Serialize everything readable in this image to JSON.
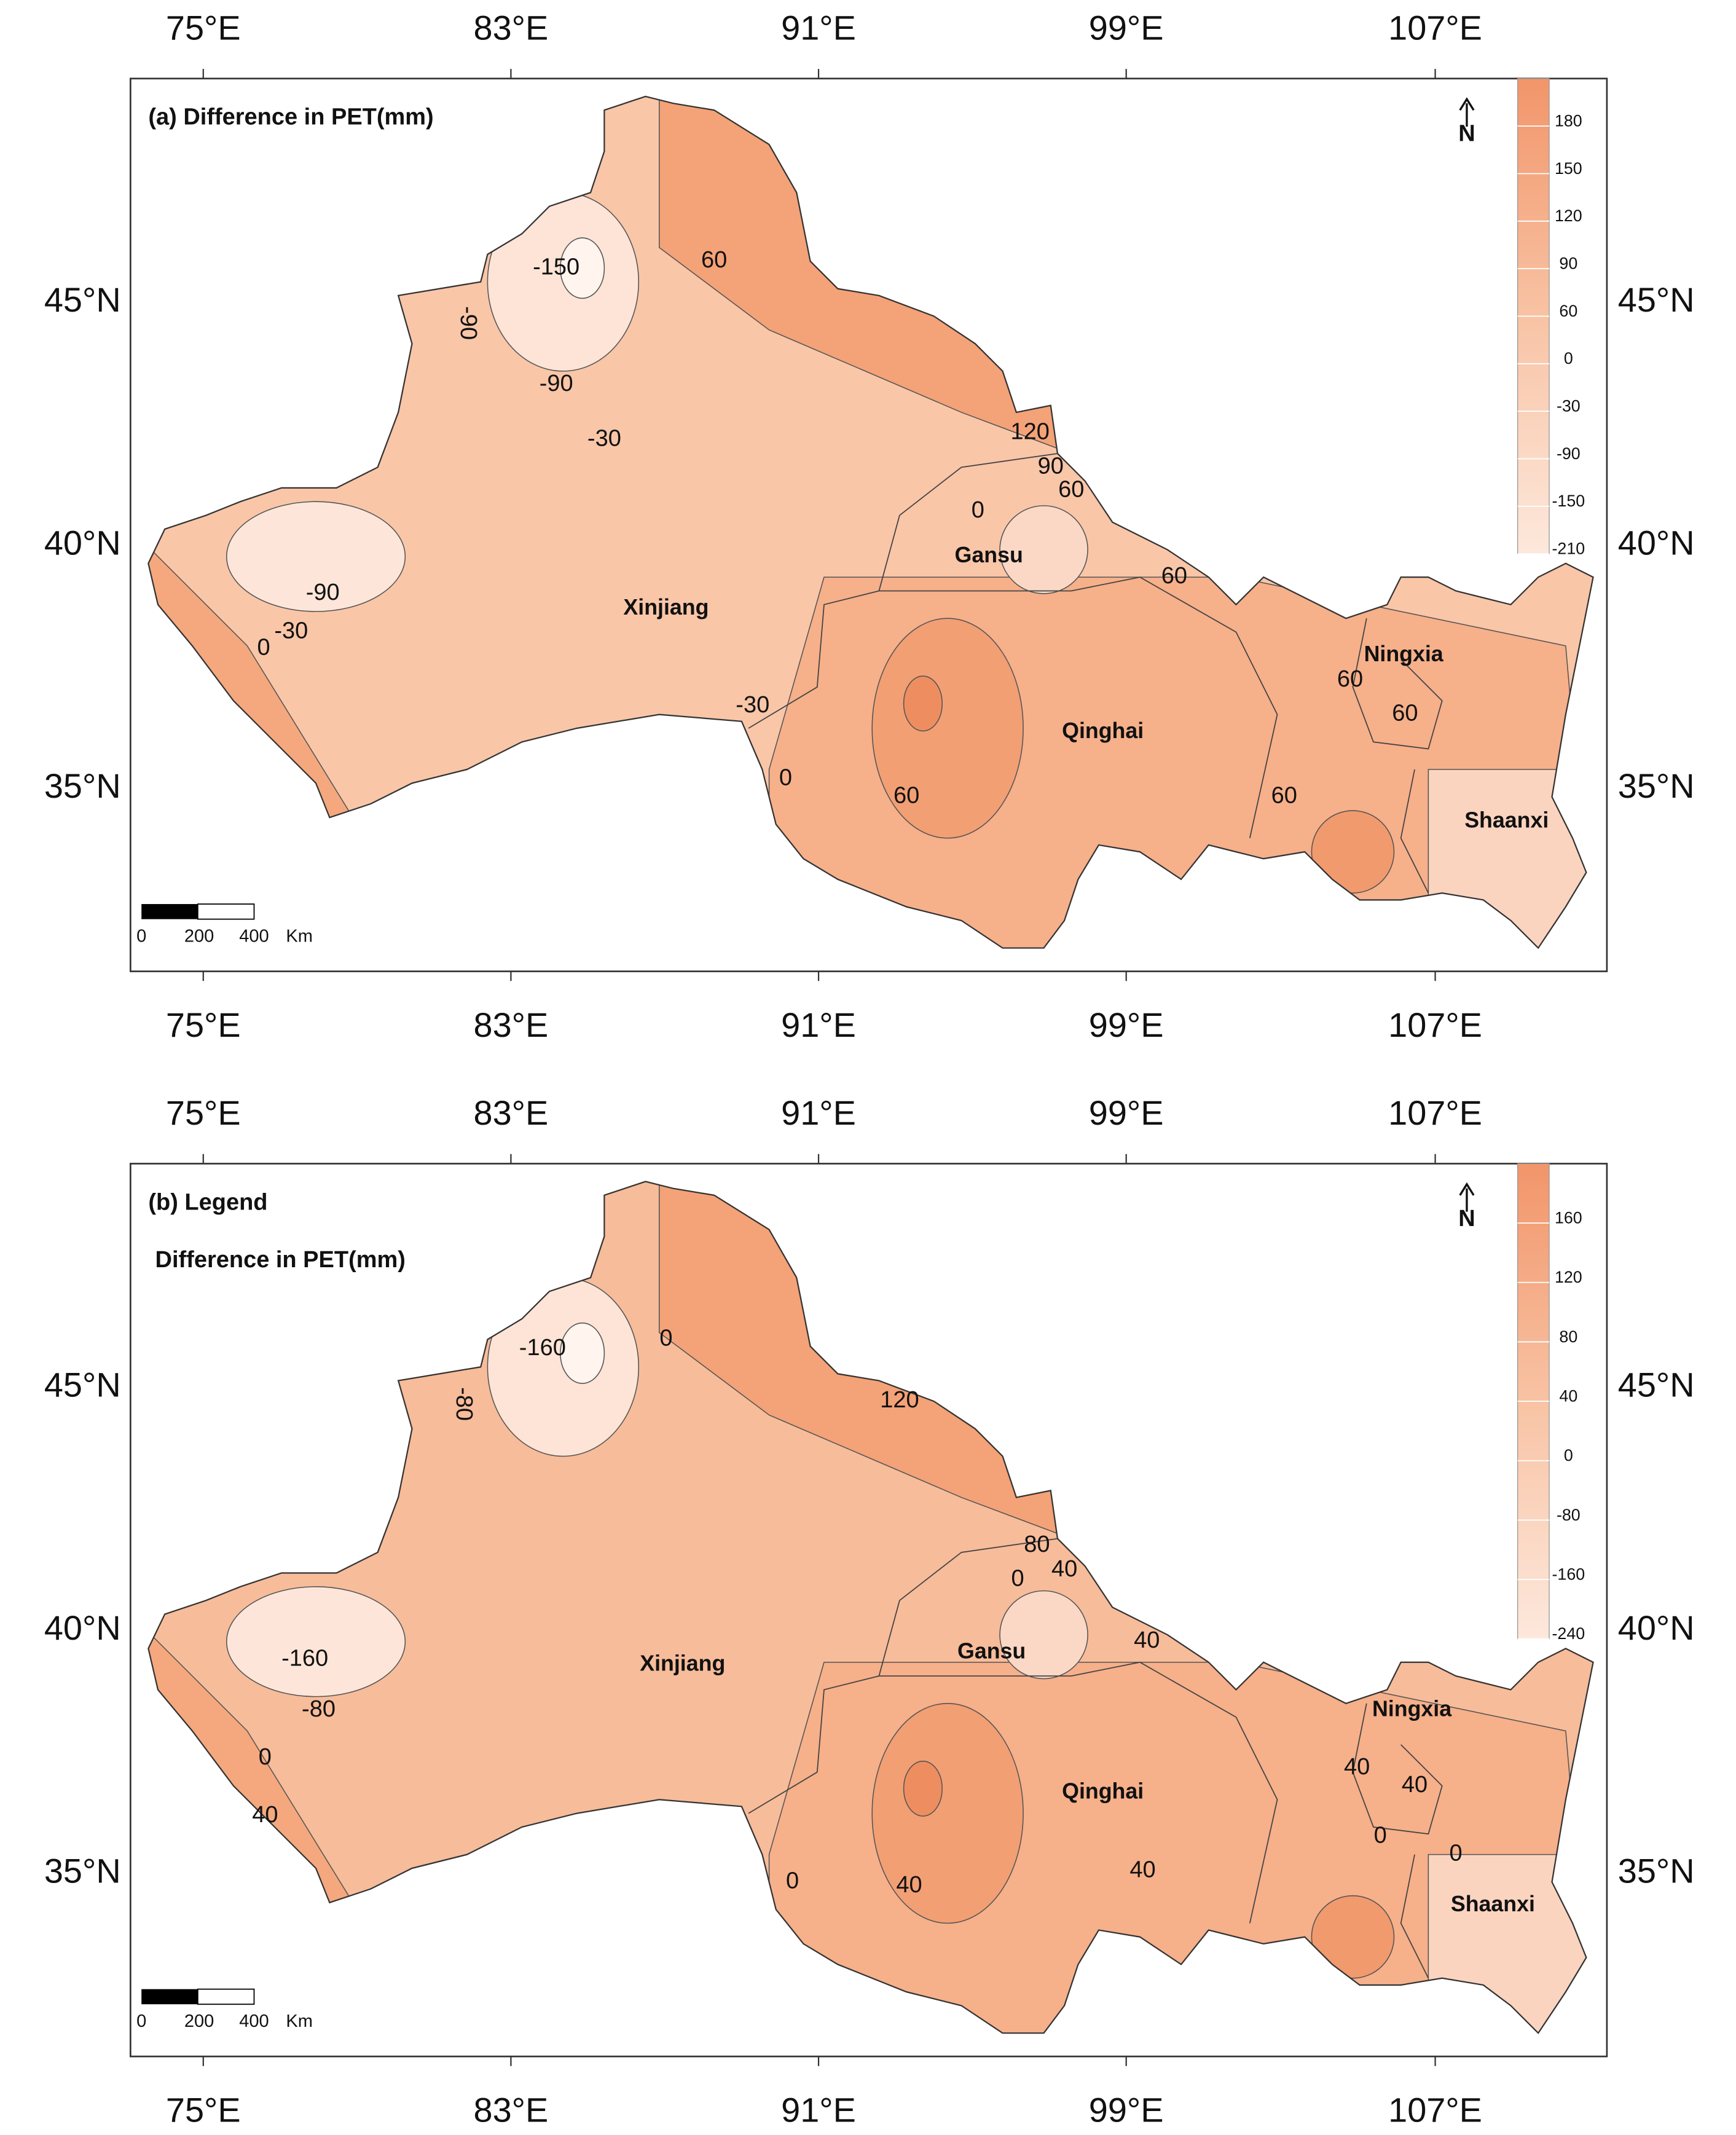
{
  "panels": [
    {
      "title": "(a) Difference in PET(mm)",
      "lon_labels": [
        "75°E",
        "83°E",
        "91°E",
        "99°E",
        "107°E"
      ],
      "lat_labels": [
        "45°N",
        "40°N",
        "35°N"
      ],
      "legend_levels": [
        "180",
        "150",
        "120",
        "90",
        "60",
        "0",
        "-30",
        "-90",
        "-150",
        "-210"
      ],
      "provinces": [
        "Xinjiang",
        "Gansu",
        "Qinghai",
        "Ningxia",
        "Shaanxi"
      ],
      "contour_labels": [
        "60",
        "-150",
        "-90",
        "-90",
        "-30",
        "120",
        "90",
        "60",
        "0",
        "60",
        "-90",
        "-30",
        "0",
        "-30",
        "0",
        "60",
        "60",
        "60",
        "60"
      ],
      "scale_bar": [
        "0",
        "200",
        "400",
        "Km"
      ],
      "north": "N"
    },
    {
      "title": "(b) Legend",
      "subtitle": "Difference in PET(mm)",
      "lon_labels": [
        "75°E",
        "83°E",
        "91°E",
        "99°E",
        "107°E"
      ],
      "lat_labels": [
        "45°N",
        "40°N",
        "35°N"
      ],
      "legend_levels": [
        "160",
        "120",
        "80",
        "40",
        "0",
        "-80",
        "-160",
        "-240"
      ],
      "provinces": [
        "Xinjiang",
        "Gansu",
        "Qinghai",
        "Ningxia",
        "Shaanxi"
      ],
      "contour_labels": [
        "-160",
        "-80",
        "0",
        "120",
        "80",
        "40",
        "0",
        "40",
        "-160",
        "-80",
        "0",
        "40",
        "0",
        "40",
        "40",
        "40",
        "0",
        "40",
        "0"
      ],
      "scale_bar": [
        "0",
        "200",
        "400",
        "Km"
      ],
      "north": "N"
    }
  ]
}
